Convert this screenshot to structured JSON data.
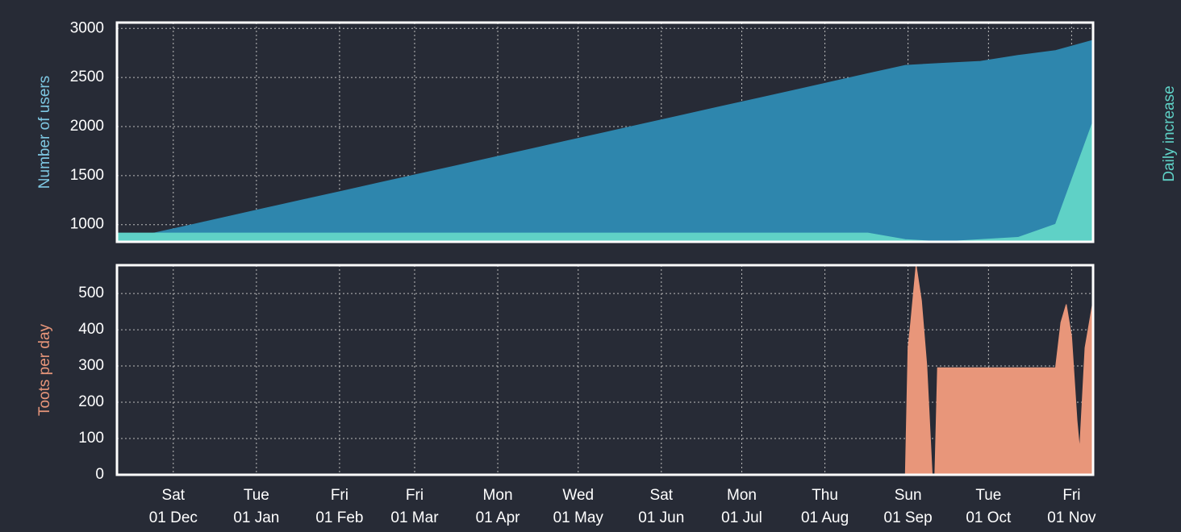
{
  "chart_data": [
    {
      "type": "area",
      "ylabel": "Number of users",
      "y2label": "Daily increase",
      "x": [
        0,
        14,
        28,
        42,
        56,
        70,
        84,
        98,
        112,
        126,
        140,
        154,
        168,
        182,
        196,
        210,
        224,
        238,
        252,
        266,
        280,
        294,
        308,
        322,
        336,
        350,
        364
      ],
      "series": [
        {
          "color": "#2e86ad",
          "values": [
            830,
            915,
            1000,
            1086,
            1172,
            1257,
            1342,
            1428,
            1513,
            1598,
            1684,
            1769,
            1855,
            1940,
            2026,
            2111,
            2197,
            2282,
            2367,
            2453,
            2539,
            2624,
            2645,
            2665,
            2725,
            2775,
            2880
          ]
        },
        {
          "color": "#5fd1c6",
          "axis": "y2",
          "values": [
            4,
            4,
            4,
            4,
            4,
            4,
            4,
            4,
            4,
            4,
            4,
            4,
            4,
            4,
            4,
            4,
            4,
            4,
            4,
            4,
            4,
            1,
            0,
            1,
            2,
            8,
            55
          ]
        }
      ],
      "xlim": [
        0,
        364
      ],
      "ylim": [
        825,
        3060
      ],
      "yticks": [
        1000,
        1500,
        2000,
        2500,
        3000
      ],
      "y2lim": [
        0,
        100
      ],
      "grid": true
    },
    {
      "type": "area",
      "ylabel": "Toots per day",
      "x": [
        0,
        294,
        295,
        296,
        298,
        300,
        302,
        304,
        305,
        306,
        350,
        352,
        354,
        356,
        358,
        359,
        361,
        364
      ],
      "series": [
        {
          "color": "#e8967a",
          "values": [
            0,
            0,
            350,
            420,
            578,
            480,
            300,
            0,
            0,
            295,
            295,
            420,
            470,
            380,
            150,
            70,
            350,
            480
          ]
        }
      ],
      "xlim": [
        0,
        364
      ],
      "ylim": [
        0,
        578
      ],
      "yticks": [
        0,
        100,
        200,
        300,
        400,
        500
      ],
      "xticks": [
        {
          "value": 21,
          "label": "Sat\n01 Dec"
        },
        {
          "value": 52,
          "label": "Tue\n01 Jan"
        },
        {
          "value": 83,
          "label": "Fri\n01 Feb"
        },
        {
          "value": 111,
          "label": "Fri\n01 Mar"
        },
        {
          "value": 142,
          "label": "Mon\n01 Apr"
        },
        {
          "value": 172,
          "label": "Wed\n01 May"
        },
        {
          "value": 203,
          "label": "Sat\n01 Jun"
        },
        {
          "value": 233,
          "label": "Mon\n01 Jul"
        },
        {
          "value": 264,
          "label": "Thu\n01 Aug"
        },
        {
          "value": 295,
          "label": "Sun\n01 Sep"
        },
        {
          "value": 325,
          "label": "Tue\n01 Oct"
        },
        {
          "value": 356,
          "label": "Fri\n01 Nov"
        }
      ],
      "grid": true
    }
  ]
}
